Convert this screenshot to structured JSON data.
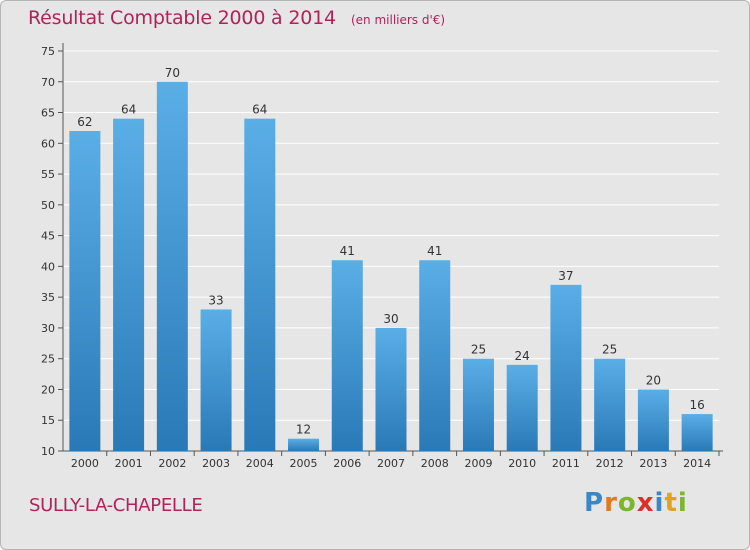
{
  "title": "Résultat Comptable 2000 à 2014",
  "subtitle": "(en milliers d'€)",
  "town": "SULLY-LA-CHAPELLE",
  "logo": {
    "text": "Proxiti",
    "letter_colors": [
      "#3a87c8",
      "#e07a1f",
      "#7ab72a",
      "#d9302b",
      "#3a87c8",
      "#e0a31f",
      "#7ab72a"
    ]
  },
  "colors": {
    "bar_top": "#5aaee6",
    "bar_bottom": "#2a79b7",
    "title": "#b0225a",
    "grid": "#ffffff"
  },
  "chart_data": {
    "type": "bar",
    "categories": [
      "2000",
      "2001",
      "2002",
      "2003",
      "2004",
      "2005",
      "2006",
      "2007",
      "2008",
      "2009",
      "2010",
      "2011",
      "2012",
      "2013",
      "2014"
    ],
    "values": [
      62,
      64,
      70,
      33,
      64,
      12,
      41,
      30,
      41,
      25,
      24,
      37,
      25,
      20,
      16
    ],
    "ylim": [
      10,
      75
    ],
    "yticks": [
      10,
      15,
      20,
      25,
      30,
      35,
      40,
      45,
      50,
      55,
      60,
      65,
      70,
      75
    ],
    "grid": true,
    "data_labels": true
  }
}
